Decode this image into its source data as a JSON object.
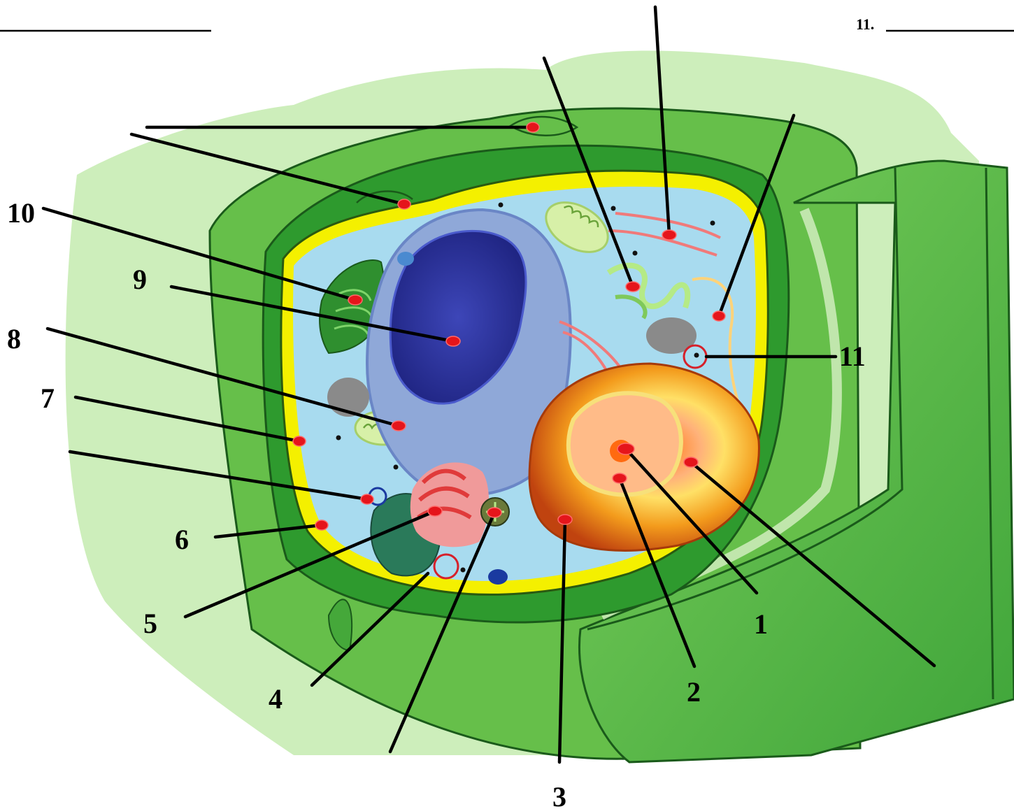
{
  "labels": {
    "n1": "1",
    "n2": "2",
    "n3": "3",
    "n4": "4",
    "n5": "5",
    "n6": "6",
    "n7": "7",
    "n8": "8",
    "n9": "9",
    "n10": "10",
    "n11": "11"
  },
  "answer_key": {
    "item11_prefix": "11."
  },
  "colors": {
    "background_glow": "#cdeebb",
    "cell_wall_outer": "#66bf4a",
    "cell_wall_inner": "#2e9a2e",
    "plasma_membrane": "#f4f000",
    "cytoplasm": "#a8dbef",
    "nucleus": "#2a2f96",
    "vacuole_area": "#f6a623",
    "marker": "#e5151b"
  }
}
